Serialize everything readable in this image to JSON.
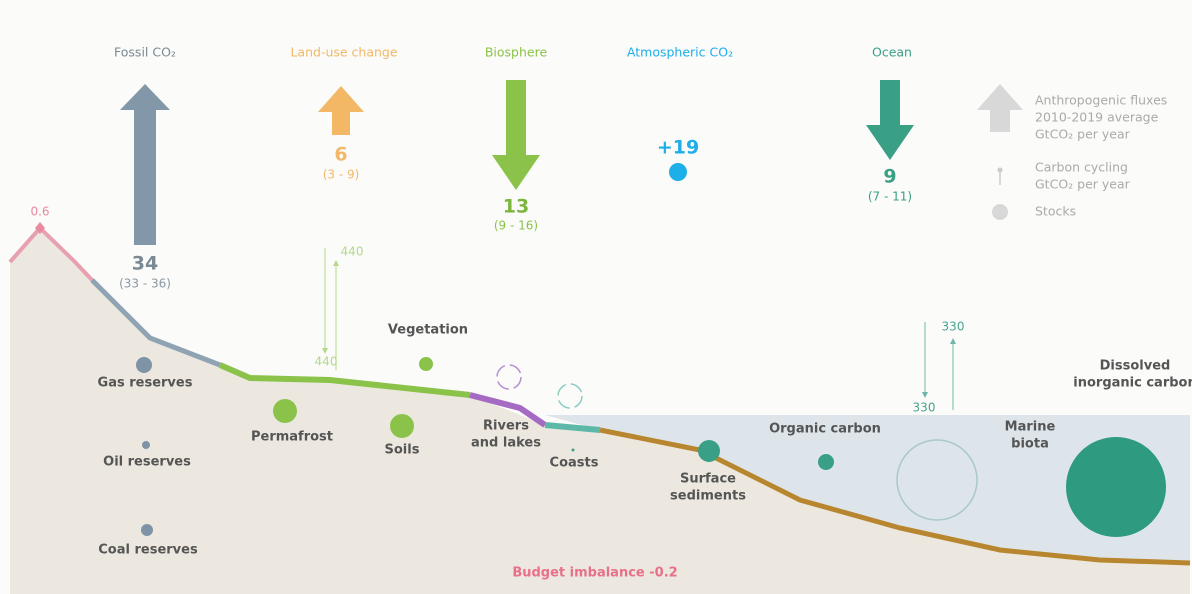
{
  "fluxes": [
    {
      "label": "Fossil CO₂",
      "value": "34",
      "range": "(33 - 36)"
    },
    {
      "label": "Land-use change",
      "value": "6",
      "range": "(3 - 9)"
    },
    {
      "label": "Biosphere",
      "value": "13",
      "range": "(9 - 16)"
    },
    {
      "label": "Atmospheric CO₂",
      "value": "+19"
    },
    {
      "label": "Ocean",
      "value": "9",
      "range": "(7 - 11)"
    }
  ],
  "legend": [
    {
      "lines": [
        "Anthropogenic fluxes",
        "2010-2019 average",
        "GtCO₂ per year"
      ]
    },
    {
      "lines": [
        "Carbon cycling",
        "GtCO₂ per year"
      ]
    },
    {
      "lines": [
        "Stocks"
      ]
    }
  ],
  "peak_label": "0.6",
  "land_cycling": [
    "440",
    "440"
  ],
  "ocean_cycling": [
    "330",
    "330"
  ],
  "stocks": [
    {
      "lines": [
        "Gas reserves"
      ]
    },
    {
      "lines": [
        "Oil reserves"
      ]
    },
    {
      "lines": [
        "Coal reserves"
      ]
    },
    {
      "lines": [
        "Permafrost"
      ]
    },
    {
      "lines": [
        "Soils"
      ]
    },
    {
      "lines": [
        "Vegetation"
      ]
    },
    {
      "lines": [
        "Rivers",
        "and lakes"
      ]
    },
    {
      "lines": [
        "Coasts"
      ]
    },
    {
      "lines": [
        "Surface",
        "sediments"
      ]
    },
    {
      "lines": [
        "Organic carbon"
      ]
    },
    {
      "lines": [
        "Marine",
        "biota"
      ]
    },
    {
      "lines": [
        "Dissolved",
        "inorganic carbon"
      ]
    }
  ],
  "budget_imbalance": "Budget imbalance -0.2"
}
